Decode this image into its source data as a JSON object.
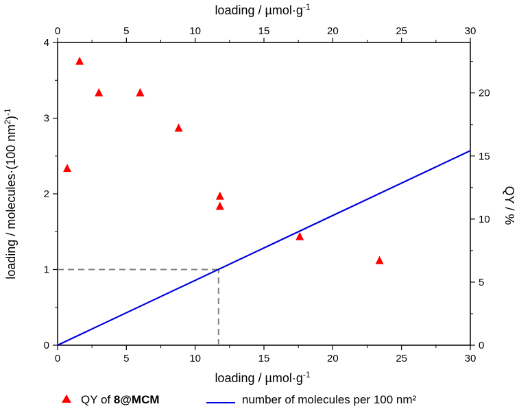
{
  "chart_data": {
    "type": "scatter+line",
    "x_axis": {
      "label_prefix": "loading / ",
      "label_mu": "µ",
      "label_unit": "mol·g",
      "label_exp": "-1",
      "range": [
        0,
        30
      ],
      "ticks": [
        0,
        5,
        10,
        15,
        20,
        25,
        30
      ]
    },
    "x_axis_top": {
      "label_prefix": "loading / ",
      "label_mu": "µ",
      "label_unit": "mol·g",
      "label_exp": "-1",
      "range": [
        0,
        30
      ],
      "ticks": [
        0,
        5,
        10,
        15,
        20,
        25,
        30
      ]
    },
    "y_axis_left": {
      "label_main": "loading / molecules·(100 nm",
      "label_sup2": "2",
      "label_close": ")",
      "label_sup_neg": "-1",
      "range": [
        0,
        4
      ],
      "ticks": [
        0,
        1,
        2,
        3,
        4
      ]
    },
    "y_axis_right": {
      "label": "QY / %",
      "range": [
        0,
        24
      ],
      "ticks": [
        0,
        5,
        10,
        15,
        20
      ]
    },
    "series": [
      {
        "name": "QY of 8@MCM",
        "type": "scatter",
        "marker": "triangle",
        "color": "#ff0000",
        "axis": "right",
        "points": [
          {
            "x": 0.7,
            "y": 14.0
          },
          {
            "x": 1.6,
            "y": 22.5
          },
          {
            "x": 3.0,
            "y": 20.0
          },
          {
            "x": 6.0,
            "y": 20.0
          },
          {
            "x": 8.8,
            "y": 17.2
          },
          {
            "x": 11.8,
            "y": 11.8
          },
          {
            "x": 11.8,
            "y": 11.0
          },
          {
            "x": 17.6,
            "y": 8.6
          },
          {
            "x": 23.4,
            "y": 6.7
          }
        ]
      },
      {
        "name": "number of molecules per 100 nm²",
        "type": "line",
        "color": "#0000dd",
        "axis": "left",
        "points": [
          {
            "x": 0,
            "y": 0
          },
          {
            "x": 30,
            "y": 2.57
          }
        ]
      }
    ],
    "guide_lines": [
      {
        "type": "horizontal",
        "y": 1,
        "x_from": 0,
        "x_to": 11.7,
        "style": "dashed",
        "color": "#808080"
      },
      {
        "type": "vertical",
        "x": 11.7,
        "y_from": 0,
        "y_to": 1,
        "style": "dashed",
        "color": "#808080"
      }
    ],
    "legend": {
      "position": "bottom",
      "items": [
        {
          "prefix": "QY of ",
          "bold": "8@MCM"
        },
        {
          "text": "number of molecules per 100 nm²"
        }
      ]
    }
  }
}
